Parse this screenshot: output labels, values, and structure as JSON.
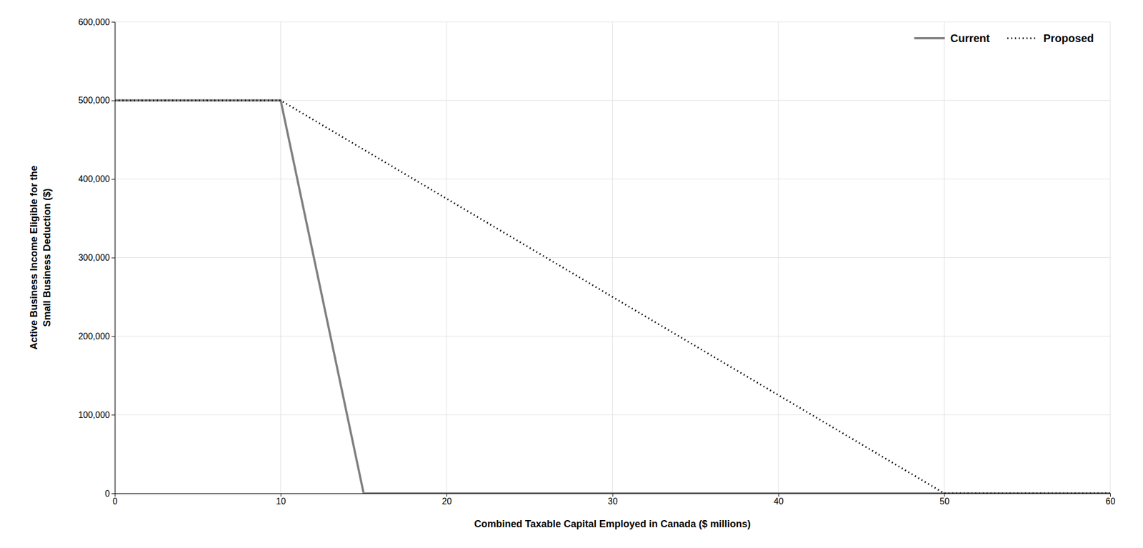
{
  "chart_data": {
    "type": "line",
    "xlabel": "Combined Taxable Capital Employed in Canada ($ millions)",
    "ylabel": "Active Business Income Eligible for the\nSmall Business Deduction ($)",
    "xlim": [
      0,
      60
    ],
    "ylim": [
      0,
      600000
    ],
    "xticks": [
      0,
      10,
      20,
      30,
      40,
      50,
      60
    ],
    "yticks": [
      0,
      {
        "value": 100000,
        "label": "100,000"
      },
      {
        "value": 200000,
        "label": "200,000"
      },
      {
        "value": 300000,
        "label": "300,000"
      },
      {
        "value": 400000,
        "label": "400,000"
      },
      {
        "value": 500000,
        "label": "500,000"
      },
      {
        "value": 600000,
        "label": "600,000"
      }
    ],
    "series": [
      {
        "name": "Current",
        "color": "#808080",
        "line_style": "solid",
        "x": [
          0,
          10,
          15,
          60
        ],
        "values": [
          500000,
          500000,
          0,
          0
        ]
      },
      {
        "name": "Proposed",
        "color": "#000000",
        "line_style": "dotted",
        "x": [
          0,
          10,
          50,
          60
        ],
        "values": [
          500000,
          500000,
          0,
          0
        ]
      }
    ],
    "grid": true,
    "legend": "upper right"
  }
}
